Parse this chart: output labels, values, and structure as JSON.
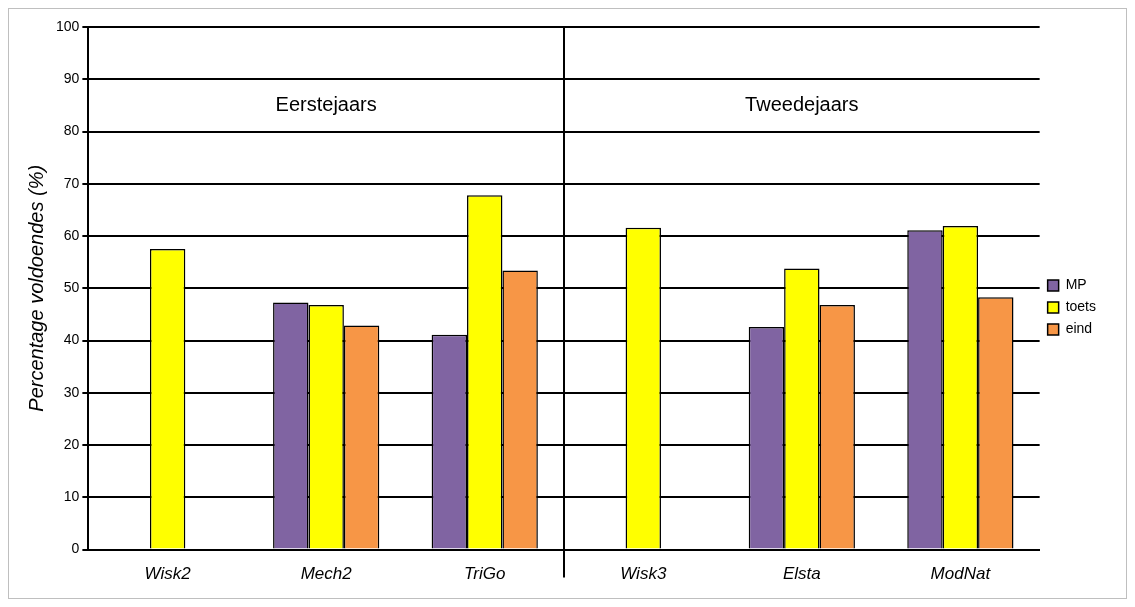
{
  "chart_data": {
    "type": "bar",
    "ylabel": "Percentage voldoendes (%)",
    "categories": [
      "Wisk2",
      "Mech2",
      "TriGo",
      "Wisk3",
      "Elsta",
      "ModNat"
    ],
    "series": [
      {
        "name": "MP",
        "color": "#8064a2",
        "values": [
          null,
          47.3,
          41.1,
          null,
          42.6,
          61.1
        ]
      },
      {
        "name": "toets",
        "color": "#ffff00",
        "values": [
          57.5,
          46.8,
          67.8,
          61.6,
          53.8,
          61.9
        ]
      },
      {
        "name": "eind",
        "color": "#f79646",
        "values": [
          null,
          42.9,
          53.4,
          null,
          46.8,
          48.3
        ]
      }
    ],
    "ylim": [
      0,
      100
    ],
    "yticks": [
      0,
      10,
      20,
      30,
      40,
      50,
      60,
      70,
      80,
      90,
      100
    ],
    "grid": "y",
    "legend": "right",
    "annotations": [
      "Eerstejaars",
      "Tweedejaars"
    ]
  }
}
